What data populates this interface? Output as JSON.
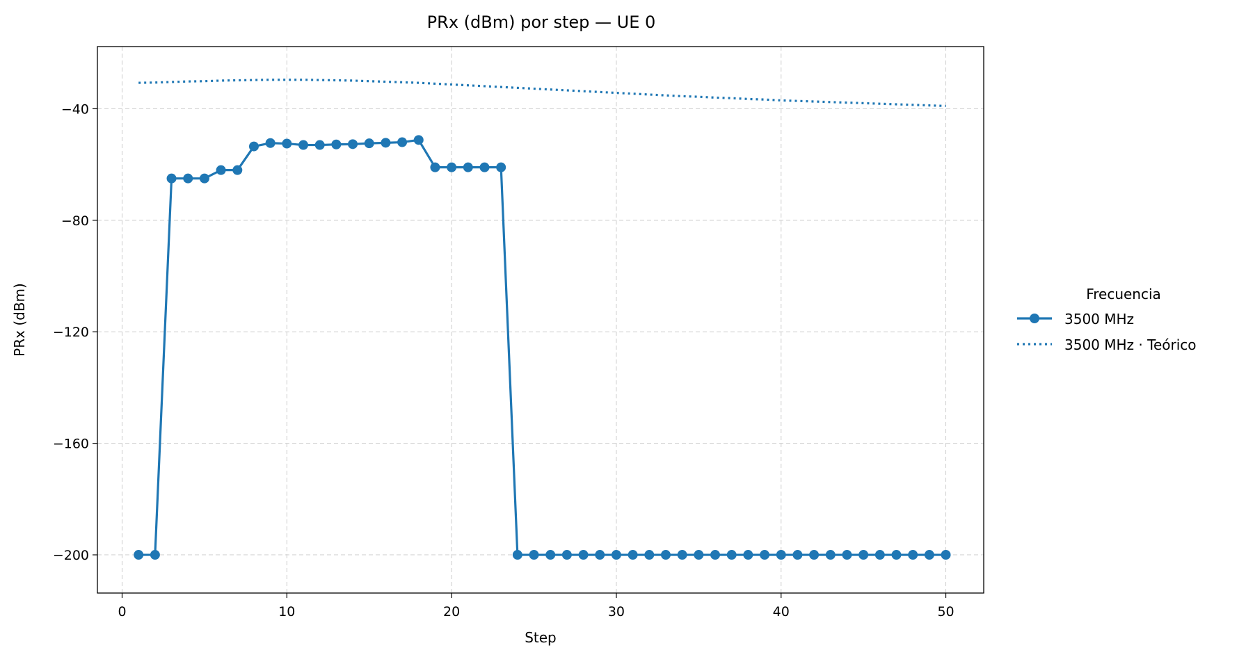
{
  "chart_data": {
    "type": "line",
    "title": "PRx (dBm) por step — UE 0",
    "xlabel": "Step",
    "ylabel": "PRx (dBm)",
    "xlim": [
      -1.5,
      52.3
    ],
    "ylim": [
      -213.7,
      -17.7
    ],
    "xticks": [
      0,
      10,
      20,
      30,
      40,
      50
    ],
    "yticks": [
      -40,
      -80,
      -120,
      -160,
      -200
    ],
    "grid": true,
    "legend_position": "right",
    "legend_title": "Frecuencia",
    "series": [
      {
        "name": "3500 MHz",
        "style": "solid-markers",
        "color": "#1f77b4",
        "x": [
          1,
          2,
          3,
          4,
          5,
          6,
          7,
          8,
          9,
          10,
          11,
          12,
          13,
          14,
          15,
          16,
          17,
          18,
          19,
          20,
          21,
          22,
          23,
          24,
          25,
          26,
          27,
          28,
          29,
          30,
          31,
          32,
          33,
          34,
          35,
          36,
          37,
          38,
          39,
          40,
          41,
          42,
          43,
          44,
          45,
          46,
          47,
          48,
          49,
          50
        ],
        "y": [
          -200,
          -200,
          -65,
          -65,
          -65,
          -62,
          -62,
          -53.5,
          -52.3,
          -52.5,
          -53,
          -53,
          -52.8,
          -52.7,
          -52.4,
          -52.2,
          -52,
          -51.2,
          -61,
          -61,
          -61,
          -61,
          -61,
          -200,
          -200,
          -200,
          -200,
          -200,
          -200,
          -200,
          -200,
          -200,
          -200,
          -200,
          -200,
          -200,
          -200,
          -200,
          -200,
          -200,
          -200,
          -200,
          -200,
          -200,
          -200,
          -200,
          -200,
          -200,
          -200,
          -200
        ]
      },
      {
        "name": "3500 MHz · Teórico",
        "style": "dotted",
        "color": "#1f77b4",
        "x": [
          1,
          2,
          3,
          4,
          5,
          6,
          7,
          8,
          9,
          10,
          11,
          12,
          13,
          14,
          15,
          16,
          17,
          18,
          19,
          20,
          21,
          22,
          23,
          24,
          25,
          26,
          27,
          28,
          29,
          30,
          31,
          32,
          33,
          34,
          35,
          36,
          37,
          38,
          39,
          40,
          41,
          42,
          43,
          44,
          45,
          46,
          47,
          48,
          49,
          50
        ],
        "y": [
          -30.7,
          -30.6,
          -30.4,
          -30.2,
          -30.1,
          -29.9,
          -29.8,
          -29.7,
          -29.6,
          -29.6,
          -29.6,
          -29.7,
          -29.8,
          -29.9,
          -30.1,
          -30.3,
          -30.5,
          -30.7,
          -31,
          -31.3,
          -31.6,
          -31.9,
          -32.2,
          -32.5,
          -32.8,
          -33.1,
          -33.4,
          -33.7,
          -34,
          -34.3,
          -34.6,
          -34.9,
          -35.2,
          -35.5,
          -35.7,
          -36,
          -36.2,
          -36.5,
          -36.7,
          -37,
          -37.2,
          -37.4,
          -37.6,
          -37.8,
          -38,
          -38.2,
          -38.4,
          -38.6,
          -38.8,
          -39
        ]
      }
    ]
  }
}
